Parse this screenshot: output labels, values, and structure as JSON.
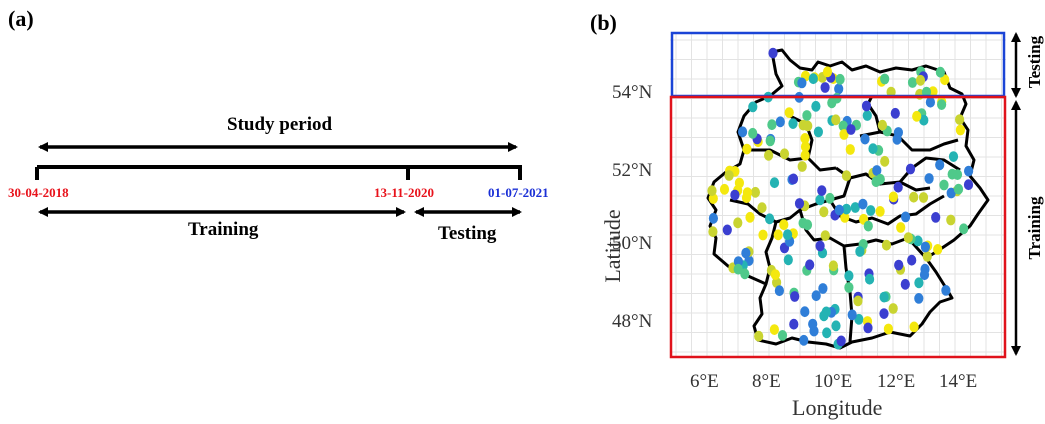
{
  "panel_a": {
    "label": "(a)",
    "study_period_label": "Study period",
    "training_label": "Training",
    "testing_label": "Testing",
    "dates": {
      "start": "30-04-2018",
      "split": "13-11-2020",
      "end": "01-07-2021"
    },
    "colors": {
      "train_dates": "#e8121b",
      "test_date": "#1a2fd6"
    }
  },
  "panel_b": {
    "label": "(b)",
    "xlabel": "Longitude",
    "ylabel": "Latitude",
    "x_ticks": [
      "6°E",
      "8°E",
      "10°E",
      "12°E",
      "14°E"
    ],
    "y_ticks": [
      "54°N",
      "52°N",
      "50°N",
      "48°N"
    ],
    "testing_label": "Testing",
    "training_label": "Training",
    "colors": {
      "testing_box": "#1a44d6",
      "training_box": "#e0121b"
    },
    "station_palette": [
      "#f4e80e",
      "#c9d431",
      "#4fc98a",
      "#24b3b3",
      "#2f7ed8",
      "#3b3fd0"
    ]
  }
}
